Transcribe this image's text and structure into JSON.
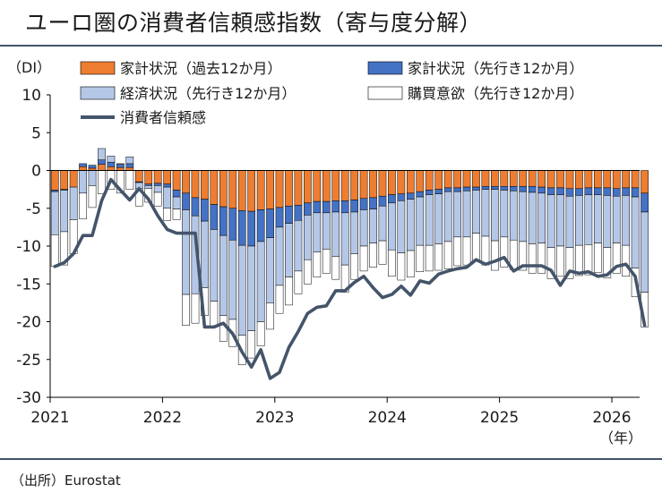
{
  "title": "ユーロ圏の消費者信頼感指数（寄与度分解）",
  "source": "（出所）Eurostat",
  "chart_data": {
    "type": "bar",
    "stacked": true,
    "y_unit": "（DI）",
    "x_unit": "（年）",
    "ylim": [
      -30,
      10
    ],
    "yticks": [
      10,
      5,
      0,
      -5,
      -10,
      -15,
      -20,
      -25,
      -30
    ],
    "x_tick_labels": [
      "2021",
      "2022",
      "2023",
      "2024",
      "2025",
      "2026"
    ],
    "months": [
      "2021-01",
      "2021-02",
      "2021-03",
      "2021-04",
      "2021-05",
      "2021-06",
      "2021-07",
      "2021-08",
      "2021-09",
      "2021-10",
      "2021-11",
      "2021-12",
      "2022-01",
      "2022-02",
      "2022-03",
      "2022-04",
      "2022-05",
      "2022-06",
      "2022-07",
      "2022-08",
      "2022-09",
      "2022-10",
      "2022-11",
      "2022-12",
      "2023-01",
      "2023-02",
      "2023-03",
      "2023-04",
      "2023-05",
      "2023-06",
      "2023-07",
      "2023-08",
      "2023-09",
      "2023-10",
      "2023-11",
      "2023-12",
      "2024-01",
      "2024-02",
      "2024-03",
      "2024-04",
      "2024-05",
      "2024-06",
      "2024-07",
      "2024-08",
      "2024-09",
      "2024-10",
      "2024-11",
      "2024-12",
      "2025-01",
      "2025-02",
      "2025-03",
      "2025-04",
      "2025-05",
      "2025-06",
      "2025-07",
      "2025-08",
      "2025-09",
      "2025-10",
      "2025-11",
      "2025-12",
      "2026-01",
      "2026-02",
      "2026-03",
      "2026-04"
    ],
    "legend_rows": [
      [
        0,
        1
      ],
      [
        2,
        3
      ],
      [
        4
      ]
    ],
    "series": [
      {
        "name": "家計状況（過去12か月）",
        "color": "#ed7d31",
        "values": [
          -2.6,
          -2.5,
          -2.2,
          0.5,
          0.3,
          0.8,
          0.5,
          0.4,
          0.4,
          -1.5,
          -1.8,
          -1.7,
          -1.8,
          -2.6,
          -3.0,
          -3.6,
          -3.8,
          -4.5,
          -4.8,
          -5.0,
          -5.3,
          -5.4,
          -5.2,
          -5.1,
          -4.9,
          -4.7,
          -4.6,
          -4.3,
          -4.1,
          -4.1,
          -4.0,
          -4.0,
          -3.9,
          -3.7,
          -3.6,
          -3.4,
          -3.2,
          -3.1,
          -3.0,
          -2.8,
          -2.6,
          -2.5,
          -2.3,
          -2.3,
          -2.2,
          -2.2,
          -2.1,
          -2.1,
          -2.1,
          -2.1,
          -2.1,
          -2.1,
          -2.2,
          -2.3,
          -2.3,
          -2.4,
          -2.4,
          -2.3,
          -2.3,
          -2.3,
          -2.4,
          -2.3,
          -2.3,
          -3.0
        ]
      },
      {
        "name": "家計状況（先行き12か月）",
        "color": "#4472c4",
        "values": [
          -0.2,
          -0.1,
          0.0,
          0.4,
          0.4,
          0.6,
          0.6,
          0.4,
          0.5,
          -0.1,
          -0.2,
          -0.3,
          -0.4,
          -0.9,
          -2.2,
          -2.4,
          -2.9,
          -3.3,
          -3.8,
          -4.2,
          -4.6,
          -4.6,
          -4.2,
          -3.8,
          -2.6,
          -2.3,
          -2.0,
          -1.6,
          -1.5,
          -1.5,
          -1.5,
          -1.6,
          -1.6,
          -1.5,
          -1.5,
          -1.3,
          -1.1,
          -0.9,
          -0.8,
          -0.7,
          -0.6,
          -0.6,
          -0.5,
          -0.5,
          -0.5,
          -0.4,
          -0.4,
          -0.4,
          -0.5,
          -0.6,
          -0.7,
          -0.8,
          -0.8,
          -0.9,
          -0.9,
          -1.0,
          -0.9,
          -0.9,
          -0.9,
          -1.0,
          -1.0,
          -1.0,
          -1.2,
          -2.5
        ]
      },
      {
        "name": "経済状況（先行き12か月）",
        "color": "#b4c7e7",
        "values": [
          -5.7,
          -5.5,
          -4.3,
          -3.0,
          -2.0,
          1.5,
          0.8,
          0.1,
          0.9,
          -0.8,
          -0.4,
          -0.9,
          -2.8,
          -1.6,
          -11.2,
          -10.3,
          -8.8,
          -9.5,
          -10.6,
          -10.5,
          -11.9,
          -11.2,
          -10.6,
          -8.6,
          -7.7,
          -7.1,
          -6.7,
          -5.9,
          -5.2,
          -4.8,
          -5.9,
          -6.9,
          -5.5,
          -4.8,
          -4.5,
          -4.6,
          -6.2,
          -6.9,
          -6.8,
          -6.4,
          -6.7,
          -6.6,
          -6.6,
          -6.0,
          -6.1,
          -5.7,
          -6.2,
          -6.8,
          -6.2,
          -6.5,
          -6.6,
          -6.8,
          -6.6,
          -7.0,
          -6.8,
          -6.8,
          -6.6,
          -6.6,
          -6.4,
          -6.9,
          -6.2,
          -6.6,
          -9.4,
          -10.6
        ]
      },
      {
        "name": "購買意欲（先行き12か月）",
        "color": "#ffffff",
        "values": [
          -4.2,
          -4.4,
          -4.5,
          -3.4,
          -2.9,
          -3.1,
          -2.5,
          -3.0,
          -2.5,
          -2.3,
          -1.8,
          -1.8,
          -1.6,
          -1.4,
          -4.1,
          -3.9,
          -3.7,
          -3.4,
          -3.4,
          -3.6,
          -3.9,
          -3.6,
          -3.2,
          -3.5,
          -3.7,
          -3.7,
          -3.0,
          -3.2,
          -3.3,
          -3.2,
          -3.0,
          -3.6,
          -3.4,
          -3.3,
          -3.2,
          -3.1,
          -3.5,
          -3.6,
          -3.5,
          -3.5,
          -3.4,
          -3.5,
          -3.6,
          -3.8,
          -3.7,
          -3.6,
          -3.8,
          -3.9,
          -4.0,
          -3.9,
          -3.8,
          -3.9,
          -4.0,
          -4.1,
          -4.0,
          -4.1,
          -4.0,
          -4.0,
          -3.9,
          -4.0,
          -4.0,
          -4.1,
          -3.8,
          -4.6
        ]
      },
      {
        "name": "消費者信頼感",
        "color": "#44546a",
        "type": "line",
        "values": [
          -12.7,
          -12.2,
          -11.0,
          -8.6,
          -8.6,
          -4.0,
          -1.2,
          -2.6,
          -3.9,
          -2.4,
          -3.8,
          -6.0,
          -7.8,
          -8.3,
          -8.3,
          -8.3,
          -20.7,
          -20.7,
          -20.2,
          -21.6,
          -24.0,
          -26.0,
          -23.7,
          -27.5,
          -26.7,
          -23.4,
          -21.3,
          -18.9,
          -18.1,
          -17.9,
          -15.9,
          -15.9,
          -14.8,
          -14.0,
          -15.5,
          -16.8,
          -16.4,
          -15.3,
          -16.5,
          -14.6,
          -14.9,
          -13.7,
          -13.3,
          -13.0,
          -12.8,
          -11.8,
          -12.4,
          -12.0,
          -11.5,
          -13.3,
          -12.6,
          -12.6,
          -12.6,
          -13.2,
          -15.2,
          -13.3,
          -13.6,
          -13.4,
          -14.0,
          -13.8,
          -12.7,
          -12.4,
          -14.0,
          -20.5
        ]
      }
    ]
  }
}
